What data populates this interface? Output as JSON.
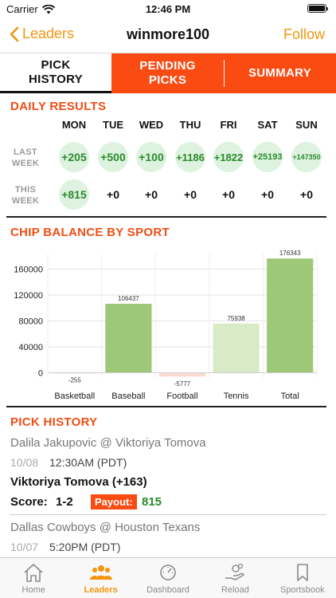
{
  "status_bar": {
    "carrier": "Carrier",
    "time": "12:46 PM"
  },
  "nav": {
    "back_label": "Leaders",
    "title": "winmore100",
    "follow_label": "Follow"
  },
  "tabs": [
    {
      "line1": "PICK",
      "line2": "HISTORY"
    },
    {
      "line1": "PENDING",
      "line2": "PICKS"
    },
    {
      "line1": "SUMMARY",
      "line2": ""
    }
  ],
  "daily_results": {
    "title": "DAILY RESULTS",
    "days": [
      "MON",
      "TUE",
      "WED",
      "THU",
      "FRI",
      "SAT",
      "SUN"
    ],
    "last_week_label": [
      "LAST",
      "WEEK"
    ],
    "this_week_label": [
      "THIS",
      "WEEK"
    ],
    "last_week": [
      "+205",
      "+500",
      "+100",
      "+1186",
      "+1822",
      "+25193",
      "+147350"
    ],
    "this_week": [
      "+815",
      "+0",
      "+0",
      "+0",
      "+0",
      "+0",
      "+0"
    ]
  },
  "chip_balance": {
    "title": "CHIP BALANCE BY SPORT"
  },
  "chart_data": {
    "type": "bar",
    "categories": [
      "Basketball",
      "Baseball",
      "Football",
      "Tennis",
      "Total"
    ],
    "values": [
      -255,
      106437,
      -5777,
      75938,
      176343
    ],
    "value_labels": [
      "-255",
      "106437",
      "-5777",
      "75938",
      "176343"
    ],
    "colors": [
      "#f9d9d2",
      "#9dc878",
      "#f9d9d2",
      "#d9ebc6",
      "#9dc878"
    ],
    "yticks": [
      "160000",
      "120000",
      "80000",
      "40000",
      "0"
    ],
    "ylim": [
      -8000,
      184000
    ],
    "grid": "horizontal"
  },
  "pick_history": {
    "title": "PICK HISTORY",
    "items": [
      {
        "match": "Dalila Jakupovic @ Viktoriya Tomova",
        "date": "10/08",
        "time": "12:30AM (PDT)",
        "pick": "Viktoriya Tomova (+163)",
        "score_label": "Score:",
        "score": "1-2",
        "payout_label": "Payout:",
        "payout": "815"
      },
      {
        "match": "Dallas Cowboys @ Houston Texans",
        "date": "10/07",
        "time": "5:20PM (PDT)"
      }
    ]
  },
  "tab_bar": [
    {
      "label": "Home",
      "icon": "home-icon"
    },
    {
      "label": "Leaders",
      "icon": "leaders-icon"
    },
    {
      "label": "Dashboard",
      "icon": "dashboard-icon"
    },
    {
      "label": "Reload",
      "icon": "reload-icon"
    },
    {
      "label": "Sportsbook",
      "icon": "sportsbook-icon"
    }
  ],
  "colors": {
    "accent_orange": "#fa4b12",
    "link_orange": "#f2960e",
    "positive_green": "#2c8a2c"
  }
}
